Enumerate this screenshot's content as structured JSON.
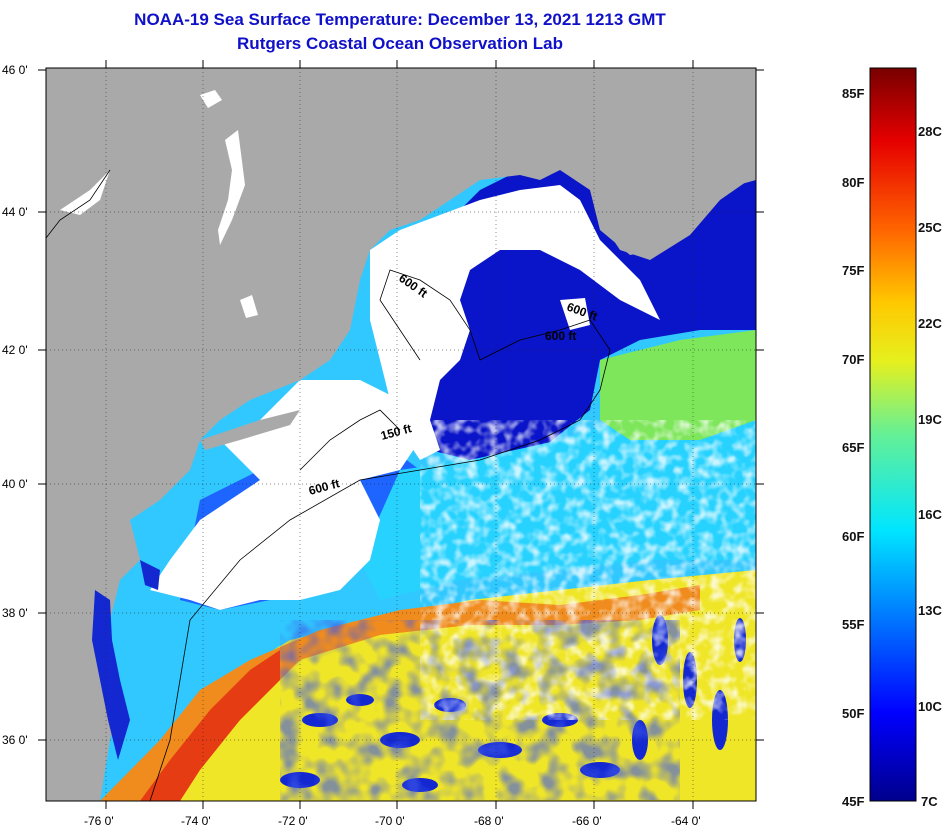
{
  "title": {
    "line1": "NOAA-19 Sea Surface Temperature:  December 13, 2021 1213 GMT",
    "line2": "Rutgers Coastal Ocean Observation Lab"
  },
  "map": {
    "lat_labels": [
      "46 0'",
      "44 0'",
      "42 0'",
      "40 0'",
      "38 0'",
      "36 0'"
    ],
    "lon_labels": [
      "-76 0'",
      "-74 0'",
      "-72 0'",
      "-70 0'",
      "-68 0'",
      "-66 0'",
      "-64 0'"
    ],
    "isobath_labels": [
      "600 ft",
      "600 ft",
      "600 ft",
      "150 ft",
      "600 ft"
    ],
    "colors": {
      "land": "#a9a9a9",
      "cloud": "#ffffff",
      "deep_blue": "#0a14c8",
      "mid_blue": "#1e64ff",
      "cyan": "#28d2ff",
      "green": "#7de65a",
      "yellow": "#f0e628",
      "orange": "#f08c1e",
      "red": "#e63c14"
    }
  },
  "colorbar": {
    "fahrenheit": [
      "85F",
      "80F",
      "75F",
      "70F",
      "65F",
      "60F",
      "55F",
      "50F",
      "45F"
    ],
    "celsius": [
      "28C",
      "25C",
      "22C",
      "19C",
      "16C",
      "13C",
      "10C",
      "7C"
    ]
  }
}
